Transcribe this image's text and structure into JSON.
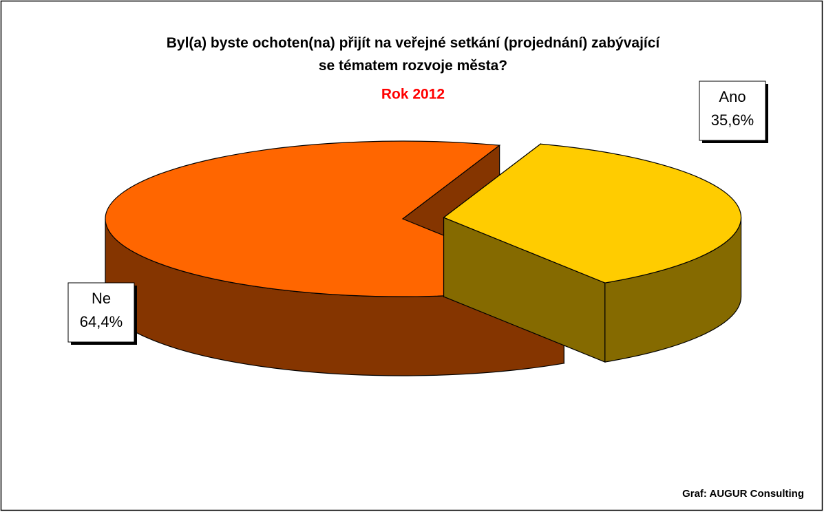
{
  "chart_data": {
    "type": "pie3d",
    "title": "Byl(a) byste ochoten(na) přijít na veřejné setkání (projednání) zabývající\nse tématem rozvoje města?",
    "subtitle": "Rok 2012",
    "categories": [
      "Ano",
      "Ne"
    ],
    "values": [
      35.6,
      64.4
    ],
    "value_labels": [
      "35,6%",
      "64,4%"
    ],
    "colors": [
      "#ffcc00",
      "#ff6600"
    ],
    "source": "Graf: AUGUR Consulting"
  }
}
